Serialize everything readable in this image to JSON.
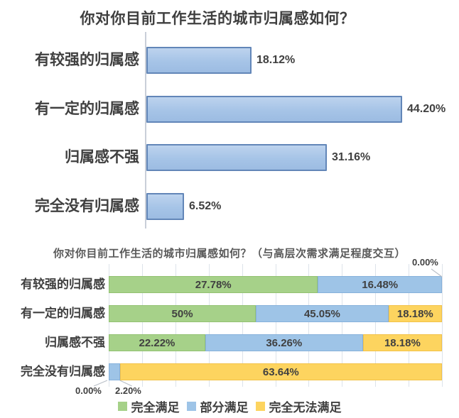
{
  "chart_data": [
    {
      "type": "bar",
      "orientation": "horizontal",
      "title": "你对你目前工作生活的城市归属感如何？",
      "categories": [
        "有较强的归属感",
        "有一定的归属感",
        "归属感不强",
        "完全没有归属感"
      ],
      "values": [
        18.12,
        44.2,
        31.16,
        6.52
      ],
      "value_labels": [
        "18.12%",
        "44.20%",
        "31.16%",
        "6.52%"
      ],
      "xlim": [
        0,
        54
      ],
      "grid": false,
      "legend": "none",
      "bar_fill": "#A6C4E7",
      "bar_border": "#6286B8"
    },
    {
      "type": "bar",
      "orientation": "horizontal",
      "stacked": "percent",
      "title": "你对你目前工作生活的城市归属感如何？（与高层次需求满足程度交互）",
      "categories": [
        "有较强的归属感",
        "有一定的归属感",
        "归属感不强",
        "完全没有归属感"
      ],
      "series": [
        {
          "name": "完全满足",
          "color": "#A6D189",
          "border": "#93C272",
          "values": [
            27.78,
            50,
            22.22,
            0
          ],
          "labels": [
            "27.78%",
            "50%",
            "22.22%",
            "0.00%"
          ]
        },
        {
          "name": "部分满足",
          "color": "#9EC4E7",
          "border": "#87B1DB",
          "values": [
            16.48,
            45.05,
            36.26,
            2.2
          ],
          "labels": [
            "16.48%",
            "45.05%",
            "36.26%",
            "2.20%"
          ]
        },
        {
          "name": "完全无法满足",
          "color": "#FDD45F",
          "border": "#F2C24A",
          "values": [
            0,
            18.18,
            18.18,
            63.64
          ],
          "labels": [
            "0.00%",
            "18.18%",
            "18.18%",
            "63.64%"
          ]
        }
      ],
      "callouts": [
        {
          "text": "0.00%",
          "row": 0,
          "series": 2
        },
        {
          "text": "0.00%",
          "row": 3,
          "series": 0
        },
        {
          "text": "2.20%",
          "row": 3,
          "series": 1
        }
      ],
      "grid": true,
      "legend_position": "bottom",
      "text_color": "#404040",
      "gridline_color": "#DDE3EA"
    }
  ]
}
